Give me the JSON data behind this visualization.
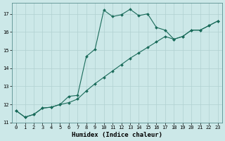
{
  "xlabel": "Humidex (Indice chaleur)",
  "bg_color": "#cce8e8",
  "line_color": "#1a6b5a",
  "grid_color": "#b0d0d0",
  "spine_color": "#5a9090",
  "xlim": [
    -0.5,
    23.5
  ],
  "ylim": [
    11,
    17.6
  ],
  "xticks": [
    0,
    1,
    2,
    3,
    4,
    5,
    6,
    7,
    8,
    9,
    10,
    11,
    12,
    13,
    14,
    15,
    16,
    17,
    18,
    19,
    20,
    21,
    22,
    23
  ],
  "yticks": [
    11,
    12,
    13,
    14,
    15,
    16,
    17
  ],
  "curve1_x": [
    0,
    1,
    2,
    3,
    4,
    5,
    6,
    7,
    8,
    9,
    10,
    11,
    12,
    13,
    14,
    15,
    16,
    17,
    18,
    19,
    20,
    21,
    22,
    23
  ],
  "curve1_y": [
    11.65,
    11.3,
    11.45,
    11.8,
    11.85,
    12.0,
    12.45,
    12.5,
    14.65,
    15.05,
    17.2,
    16.85,
    16.95,
    17.25,
    16.9,
    17.0,
    16.25,
    16.1,
    15.6,
    15.75,
    16.1,
    16.1,
    16.35,
    16.6
  ],
  "curve2_x": [
    0,
    1,
    2,
    3,
    4,
    5,
    6,
    7,
    8,
    9,
    10,
    11,
    12,
    13,
    14,
    15,
    16,
    17,
    18,
    19,
    20,
    21,
    22,
    23
  ],
  "curve2_y": [
    11.65,
    11.3,
    11.45,
    11.8,
    11.85,
    12.0,
    12.1,
    12.3,
    12.75,
    13.15,
    13.5,
    13.85,
    14.2,
    14.55,
    14.85,
    15.15,
    15.45,
    15.75,
    15.6,
    15.75,
    16.1,
    16.1,
    16.35,
    16.6
  ],
  "marker_size": 2.0,
  "line_width": 0.8,
  "tick_fontsize": 5.0,
  "xlabel_fontsize": 6.5
}
